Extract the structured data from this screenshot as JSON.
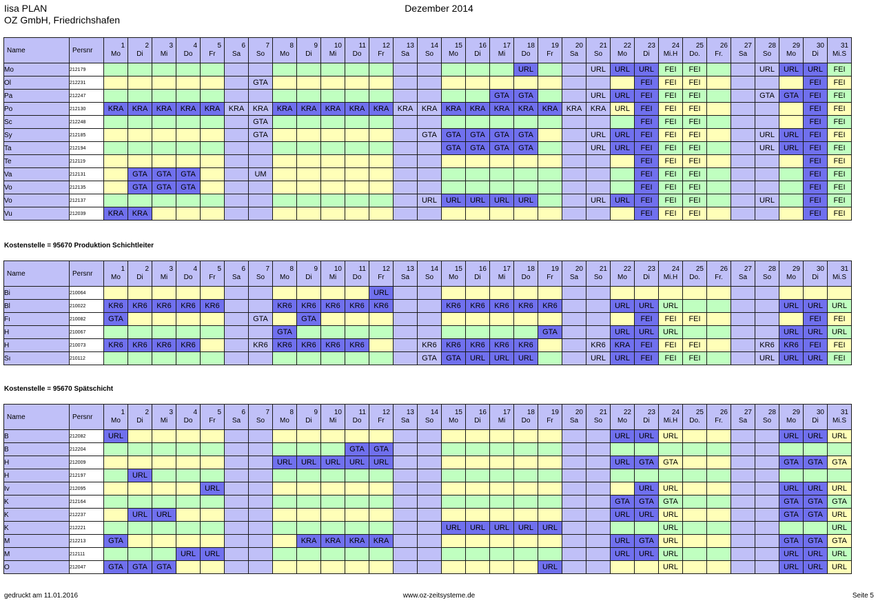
{
  "header": {
    "app_line1": "Iisa PLAN",
    "app_line2": "OZ GmbH, Friedrichshafen",
    "month_title": "Dezember 2014"
  },
  "columns": {
    "name": "Name",
    "persnr": "Persnr",
    "days": [
      "1",
      "2",
      "3",
      "4",
      "5",
      "6",
      "7",
      "8",
      "9",
      "10",
      "11",
      "12",
      "13",
      "14",
      "15",
      "16",
      "17",
      "18",
      "19",
      "20",
      "21",
      "22",
      "23",
      "24",
      "25",
      "26",
      "27",
      "28",
      "29",
      "30",
      "31"
    ],
    "weekdays": [
      "Mo",
      "Di",
      "Mi",
      "Do",
      "Fr",
      "Sa",
      "So",
      "Mo",
      "Di",
      "Mi",
      "Do",
      "Fr",
      "Sa",
      "So",
      "Mo",
      "Di",
      "Mi",
      "Do",
      "Fr",
      "Sa",
      "So",
      "Mo",
      "Di",
      "Mi.H",
      "Do.",
      "Fr.",
      "Sa",
      "So",
      "Mo",
      "Di",
      "Mi.S"
    ]
  },
  "colors": {
    "header_lavender": "#c0c0f8",
    "weekday_green": "#c0ffc0",
    "weekday_yellow": "#ffffb8",
    "weekend_lavender": "#c0c0f8",
    "absence_blue": "#7070ee"
  },
  "sections": [
    {
      "label": "",
      "rows": [
        {
          "name": "Mo",
          "persnr": "212179",
          "bg": "GGGGGLLGGGGGLLGGGGGLLGGGGGLLGGG",
          "codes": {
            "18": "URL",
            "21": "URL",
            "22": "URL",
            "23": "URL",
            "24": "FEI",
            "25": "FEI",
            "28": "URL",
            "29": "URL",
            "30": "URL",
            "31": "FEI"
          },
          "dark": [
            "18",
            "22",
            "23",
            "29",
            "30"
          ]
        },
        {
          "name": "Ol",
          "persnr": "212231",
          "bg": "YYYYYLLYYYYYLLYYYYYLLYYYYYLLYYY",
          "codes": {
            "7": "GTA",
            "23": "FEI",
            "24": "FEI",
            "25": "FEI",
            "30": "FEI",
            "31": "FEI"
          },
          "dark": [
            "23",
            "30"
          ]
        },
        {
          "name": "Pa",
          "persnr": "212247",
          "bg": "GGGGGLLGGGGGLLGGGGGLLYGGGGLLGGG",
          "codes": {
            "17": "GTA",
            "18": "GTA",
            "21": "URL",
            "22": "URL",
            "23": "FEI",
            "24": "FEI",
            "25": "FEI",
            "28": "GTA",
            "29": "GTA",
            "30": "FEI",
            "31": "FEI"
          },
          "dark": [
            "17",
            "18",
            "22",
            "23",
            "29",
            "30"
          ]
        },
        {
          "name": "Po",
          "persnr": "212130",
          "bg": "YYYYYLLYYYYYLLYYYYYLLYYYYYLLYYY",
          "codes": {
            "1": "KRA",
            "2": "KRA",
            "3": "KRA",
            "4": "KRA",
            "5": "KRA",
            "6": "KRA",
            "7": "KRA",
            "8": "KRA",
            "9": "KRA",
            "10": "KRA",
            "11": "KRA",
            "12": "KRA",
            "13": "KRA",
            "14": "KRA",
            "15": "KRA",
            "16": "KRA",
            "17": "KRA",
            "18": "KRA",
            "19": "KRA",
            "20": "KRA",
            "21": "KRA",
            "22": "URL",
            "23": "FEI",
            "24": "FEI",
            "25": "FEI",
            "30": "FEI",
            "31": "FEI"
          },
          "dark": [
            "1",
            "2",
            "3",
            "4",
            "5",
            "8",
            "9",
            "10",
            "11",
            "12",
            "15",
            "16",
            "17",
            "18",
            "19",
            "23",
            "30"
          ]
        },
        {
          "name": "Sc",
          "persnr": "212248",
          "bg": "GGGGGLLGGGGGLLGGGGGLLGGGGGLLYGG",
          "codes": {
            "7": "GTA",
            "23": "FEI",
            "24": "FEI",
            "25": "FEI",
            "30": "FEI",
            "31": "FEI"
          },
          "dark": [
            "23",
            "30"
          ]
        },
        {
          "name": "Sy",
          "persnr": "212185",
          "bg": "YYYYYLLYYYYYLLYYYYYLLYYYYYLLYYY",
          "codes": {
            "7": "GTA",
            "14": "GTA",
            "15": "GTA",
            "16": "GTA",
            "17": "GTA",
            "18": "GTA",
            "21": "URL",
            "22": "URL",
            "23": "FEI",
            "24": "FEI",
            "25": "FEI",
            "28": "URL",
            "29": "URL",
            "30": "FEI",
            "31": "FEI"
          },
          "dark": [
            "15",
            "16",
            "17",
            "18",
            "22",
            "23",
            "29",
            "30"
          ]
        },
        {
          "name": "Ta",
          "persnr": "212194",
          "bg": "GGGGGLLGGGGGLLGGGGGLLGGGGGLLGGG",
          "codes": {
            "15": "GTA",
            "16": "GTA",
            "17": "GTA",
            "18": "GTA",
            "21": "URL",
            "22": "URL",
            "23": "FEI",
            "24": "FEI",
            "25": "FEI",
            "28": "URL",
            "29": "URL",
            "30": "FEI",
            "31": "FEI"
          },
          "dark": [
            "15",
            "16",
            "17",
            "18",
            "22",
            "23",
            "29",
            "30"
          ]
        },
        {
          "name": "Te",
          "persnr": "212119",
          "bg": "YYYYYLLYYYYYLLYYYYYLLYYYYYLLYYY",
          "codes": {
            "23": "FEI",
            "24": "FEI",
            "25": "FEI",
            "30": "FEI",
            "31": "FEI"
          },
          "dark": [
            "23",
            "30"
          ]
        },
        {
          "name": "Va",
          "persnr": "212131",
          "bg": "YYYYYLLYYYYYLLGGGGGLLGGGGGLLGGG",
          "codes": {
            "2": "GTA",
            "3": "GTA",
            "4": "GTA",
            "7": "UM",
            "23": "FEI",
            "24": "FEI",
            "25": "FEI",
            "30": "FEI",
            "31": "FEI"
          },
          "dark": [
            "2",
            "3",
            "4",
            "23",
            "30"
          ]
        },
        {
          "name": "Vo",
          "persnr": "212135",
          "bg": "YYYYYLLYYYYYLLGGGGGLLGGGGGLLGGG",
          "codes": {
            "2": "GTA",
            "3": "GTA",
            "4": "GTA",
            "23": "FEI",
            "24": "FEI",
            "25": "FEI",
            "30": "FEI",
            "31": "FEI"
          },
          "dark": [
            "2",
            "3",
            "4",
            "23",
            "30"
          ]
        },
        {
          "name": "Vo",
          "persnr": "212137",
          "bg": "GGGGGLLGGGGGLLGGGGGLLGGGGGLLGGG",
          "codes": {
            "14": "URL",
            "15": "URL",
            "16": "URL",
            "17": "URL",
            "18": "URL",
            "21": "URL",
            "22": "URL",
            "23": "FEI",
            "24": "FEI",
            "25": "FEI",
            "28": "URL",
            "30": "FEI",
            "31": "FEI"
          },
          "dark": [
            "15",
            "16",
            "17",
            "18",
            "22",
            "23",
            "30"
          ]
        },
        {
          "name": "Vu",
          "persnr": "212039",
          "bg": "YYYYYLLYYYYYLLYYYYYLLYYYYYLLYYY",
          "codes": {
            "1": "KRA",
            "2": "KRA",
            "23": "FEI",
            "24": "FEI",
            "25": "FEI",
            "30": "FEI",
            "31": "FEI"
          },
          "dark": [
            "1",
            "2",
            "23",
            "30"
          ]
        }
      ]
    },
    {
      "label": "Kostenstelle = 95670 Produktion Schichtleiter",
      "rows": [
        {
          "name": "Bi",
          "persnr": "210064",
          "bg": "YYYYYLLYYYYYLLYYYYYLLYYYYYLLYYY",
          "codes": {
            "12": "URL"
          },
          "dark": [
            "12"
          ]
        },
        {
          "name": "Bl",
          "persnr": "210022",
          "bg": "GGGGGLLGGGGGLLGGGGGLLGGGGGLLGGG",
          "codes": {
            "1": "KR6",
            "2": "KR6",
            "3": "KR6",
            "4": "KR6",
            "5": "KR6",
            "8": "KR6",
            "9": "KR6",
            "10": "KR6",
            "11": "KR6",
            "12": "KR6",
            "15": "KR6",
            "16": "KR6",
            "17": "KR6",
            "18": "KR6",
            "19": "KR6",
            "22": "URL",
            "23": "URL",
            "24": "URL",
            "29": "URL",
            "30": "URL",
            "31": "URL"
          },
          "dark": [
            "1",
            "2",
            "3",
            "4",
            "5",
            "8",
            "9",
            "10",
            "11",
            "12",
            "15",
            "16",
            "17",
            "18",
            "19",
            "22",
            "23",
            "29",
            "30"
          ]
        },
        {
          "name": "Fı",
          "persnr": "210082",
          "bg": "YYYYYLLYYYYYLLYYYYYLLYYYYYLLYYY",
          "codes": {
            "1": "GTA",
            "7": "GTA",
            "9": "GTA",
            "23": "FEI",
            "24": "FEI",
            "25": "FEI",
            "30": "FEI",
            "31": "FEI"
          },
          "dark": [
            "1",
            "9",
            "23",
            "30"
          ]
        },
        {
          "name": "H",
          "persnr": "210067",
          "bg": "GGGGGLLGGGGGLLGGGGGLLGGGGGLLGGG",
          "codes": {
            "8": "GTA",
            "19": "GTA",
            "22": "URL",
            "23": "URL",
            "24": "URL",
            "29": "URL",
            "30": "URL",
            "31": "URL"
          },
          "dark": [
            "8",
            "19",
            "22",
            "23",
            "29",
            "30"
          ]
        },
        {
          "name": "H",
          "persnr": "210073",
          "bg": "YYYYYLLYYYYYLLYYYYYLLYYYYYLLYYY",
          "codes": {
            "1": "KR6",
            "2": "KR6",
            "3": "KR6",
            "4": "KR6",
            "7": "KR6",
            "8": "KR6",
            "9": "KR6",
            "10": "KR6",
            "11": "KR6",
            "14": "KR6",
            "15": "KR6",
            "16": "KR6",
            "17": "KR6",
            "18": "KR6",
            "21": "KR6",
            "22": "KRA",
            "23": "FEI",
            "24": "FEI",
            "25": "FEI",
            "28": "KR6",
            "29": "KR6",
            "30": "FEI",
            "31": "FEI"
          },
          "dark": [
            "1",
            "2",
            "3",
            "4",
            "8",
            "9",
            "10",
            "11",
            "15",
            "16",
            "17",
            "18",
            "22",
            "23",
            "29",
            "30"
          ]
        },
        {
          "name": "Sı",
          "persnr": "210112",
          "bg": "GGGGGLLGGGGGLLGGGGGLLGGGGGLLGGG",
          "codes": {
            "14": "GTA",
            "15": "GTA",
            "16": "URL",
            "17": "URL",
            "18": "URL",
            "21": "URL",
            "22": "URL",
            "23": "FEI",
            "24": "FEI",
            "25": "FEI",
            "28": "URL",
            "29": "URL",
            "30": "URL",
            "31": "FEI"
          },
          "dark": [
            "15",
            "16",
            "17",
            "18",
            "22",
            "23",
            "29",
            "30"
          ]
        }
      ]
    },
    {
      "label": "Kostenstelle = 95670 Spätschicht",
      "rows": [
        {
          "name": "B",
          "persnr": "212082",
          "bg": "YYYYYLLYYYYYLLYYYYYLLYYYYYLLYYY",
          "codes": {
            "1": "URL",
            "22": "URL",
            "23": "URL",
            "24": "URL",
            "29": "URL",
            "30": "URL",
            "31": "URL"
          },
          "dark": [
            "1",
            "22",
            "23",
            "29",
            "30"
          ]
        },
        {
          "name": "B",
          "persnr": "212204",
          "bg": "GGGGGLLGGGGGLLGGGGGLLGGGGGLLGGG",
          "codes": {
            "11": "GTA",
            "12": "GTA"
          },
          "dark": [
            "11",
            "12"
          ]
        },
        {
          "name": "H",
          "persnr": "212009",
          "bg": "YYYYYLLYYYYYLLYYYYYLLYYYYYLLYYY",
          "codes": {
            "8": "URL",
            "9": "URL",
            "10": "URL",
            "11": "URL",
            "12": "URL",
            "22": "URL",
            "23": "GTA",
            "24": "GTA",
            "29": "GTA",
            "30": "GTA",
            "31": "GTA"
          },
          "dark": [
            "8",
            "9",
            "10",
            "11",
            "12",
            "22",
            "23",
            "29",
            "30"
          ]
        },
        {
          "name": "H",
          "persnr": "212197",
          "bg": "GGGGGLLGGGGGLLGGGGGLLGGGGGLLGGG",
          "codes": {
            "2": "URL"
          },
          "dark": [
            "2"
          ]
        },
        {
          "name": "Iv",
          "persnr": "212095",
          "bg": "YYYYYLLYYYYYLLYYYYYLLYYYYYLLYYY",
          "codes": {
            "5": "URL",
            "23": "URL",
            "24": "URL",
            "29": "URL",
            "30": "URL",
            "31": "URL"
          },
          "dark": [
            "5",
            "23",
            "29",
            "30"
          ]
        },
        {
          "name": "K",
          "persnr": "212164",
          "bg": "GGGGGLLGGGGGLLGGGGGLLGGGGGLLGGG",
          "codes": {
            "22": "GTA",
            "23": "GTA",
            "24": "GTA",
            "29": "GTA",
            "30": "GTA",
            "31": "GTA"
          },
          "dark": [
            "22",
            "23",
            "29",
            "30"
          ]
        },
        {
          "name": "K",
          "persnr": "212237",
          "bg": "YYYYYLLYYYYYLLYYYYYLLYYYYYLLYYY",
          "codes": {
            "2": "URL",
            "3": "URL",
            "22": "URL",
            "23": "URL",
            "24": "URL",
            "29": "GTA",
            "30": "GTA",
            "31": "URL"
          },
          "dark": [
            "2",
            "3",
            "22",
            "23",
            "29",
            "30"
          ]
        },
        {
          "name": "K",
          "persnr": "212221",
          "bg": "GGGGGLLGGGGGLLGGGGGLLGGGGGLLGGG",
          "codes": {
            "15": "URL",
            "16": "URL",
            "17": "URL",
            "18": "URL",
            "19": "URL",
            "24": "URL",
            "31": "URL"
          },
          "dark": [
            "15",
            "16",
            "17",
            "18",
            "19"
          ]
        },
        {
          "name": "M",
          "persnr": "212213",
          "bg": "YYYYYLLYYYYYLLYYYYYLLYYYYYLLYYY",
          "codes": {
            "1": "GTA",
            "9": "KRA",
            "10": "KRA",
            "11": "KRA",
            "12": "KRA",
            "22": "URL",
            "23": "GTA",
            "24": "URL",
            "29": "GTA",
            "30": "GTA",
            "31": "GTA"
          },
          "dark": [
            "1",
            "9",
            "10",
            "11",
            "12",
            "22",
            "23",
            "29",
            "30"
          ]
        },
        {
          "name": "M",
          "persnr": "212111",
          "bg": "GGGGGLLGGGGGLLGGGGGLLGGGGGLLGGG",
          "codes": {
            "4": "URL",
            "5": "URL",
            "22": "URL",
            "23": "URL",
            "24": "URL",
            "29": "URL",
            "30": "URL",
            "31": "URL"
          },
          "dark": [
            "4",
            "5",
            "22",
            "23",
            "29",
            "30"
          ]
        },
        {
          "name": "O",
          "persnr": "212047",
          "bg": "YYYYYLLYYYYYLLYYYYYLLYYYYYLLYYY",
          "codes": {
            "1": "GTA",
            "2": "GTA",
            "3": "GTA",
            "19": "URL",
            "24": "URL",
            "29": "URL",
            "30": "URL",
            "31": "URL"
          },
          "dark": [
            "1",
            "2",
            "3",
            "19",
            "29",
            "30"
          ]
        }
      ]
    }
  ],
  "footer": {
    "printed": "gedruckt am 11.01.2016",
    "website": "www.oz-zeitsysteme.de",
    "page": "Seite 5"
  }
}
